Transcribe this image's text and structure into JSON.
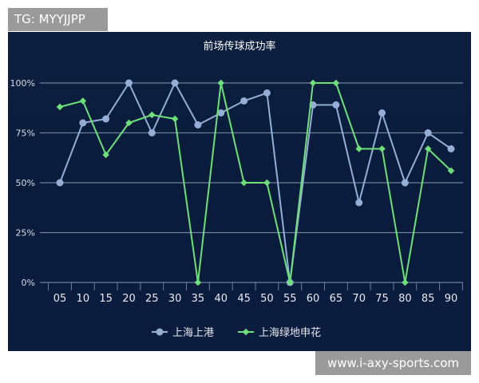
{
  "overlay_tag": "TG: MYYJJPP",
  "watermark": "www.i-axy-sports.com",
  "chart_data": {
    "type": "line",
    "title": "前场传球成功率",
    "categories": [
      "05",
      "10",
      "15",
      "20",
      "25",
      "30",
      "35",
      "40",
      "45",
      "50",
      "55",
      "60",
      "65",
      "70",
      "75",
      "80",
      "85",
      "90"
    ],
    "yticks": [
      "0%",
      "25%",
      "50%",
      "75%",
      "100%"
    ],
    "ylim": [
      0,
      100
    ],
    "grid": true,
    "legend_placement": "bottom",
    "series": [
      {
        "name": "上海上港",
        "color": "#94aed6",
        "marker": "circle",
        "values": [
          50,
          80,
          82,
          100,
          75,
          100,
          79,
          85,
          91,
          95,
          0,
          89,
          89,
          40,
          85,
          50,
          75,
          67
        ]
      },
      {
        "name": "上海绿地申花",
        "color": "#6ee07a",
        "marker": "diamond",
        "values": [
          88,
          91,
          64,
          80,
          84,
          82,
          0,
          100,
          50,
          50,
          0,
          100,
          100,
          67,
          67,
          0,
          67,
          56
        ]
      }
    ]
  }
}
